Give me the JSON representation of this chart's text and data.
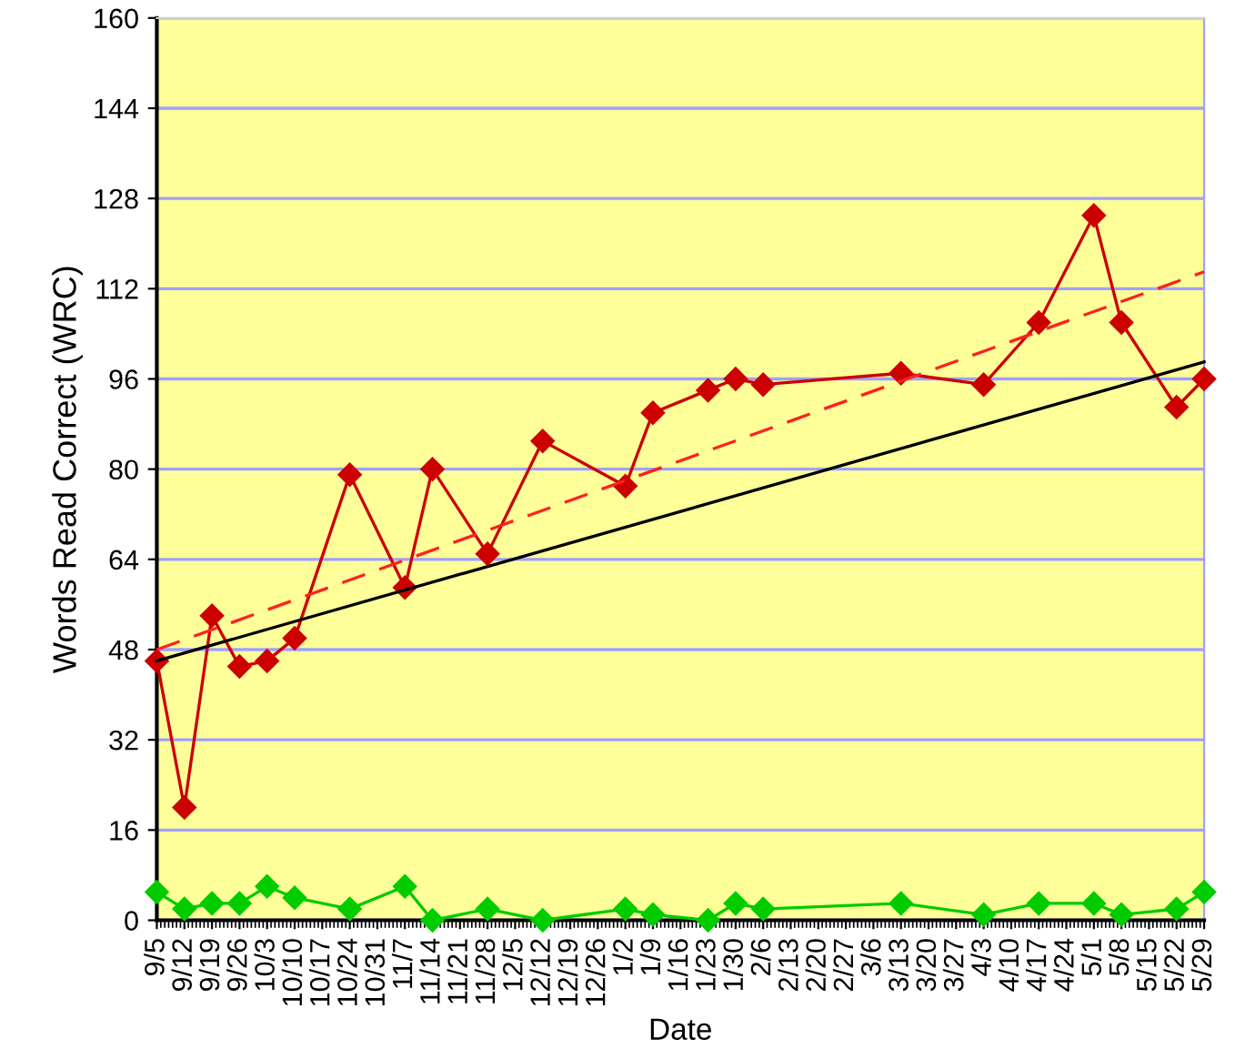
{
  "chart_data": {
    "type": "line",
    "xlabel": "Date",
    "ylabel": "Words Read Correct (WRC)",
    "ylim": [
      0,
      160
    ],
    "yticks": [
      0,
      16,
      32,
      48,
      64,
      80,
      96,
      112,
      128,
      144,
      160
    ],
    "categories": [
      "9/5",
      "9/12",
      "9/19",
      "9/26",
      "10/3",
      "10/10",
      "10/17",
      "10/24",
      "10/31",
      "11/7",
      "11/14",
      "11/21",
      "11/28",
      "12/5",
      "12/12",
      "12/19",
      "12/26",
      "1/2",
      "1/9",
      "1/16",
      "1/23",
      "1/30",
      "2/6",
      "2/13",
      "2/20",
      "2/27",
      "3/6",
      "3/13",
      "3/20",
      "3/27",
      "4/3",
      "4/10",
      "4/17",
      "4/24",
      "5/1",
      "5/8",
      "5/15",
      "5/22",
      "5/29"
    ],
    "grid": "y",
    "legend": false,
    "series": [
      {
        "color": "#cc0000",
        "marker": "diamond",
        "line_style": "solid",
        "values": [
          46,
          20,
          54,
          45,
          46,
          50,
          null,
          79,
          null,
          59,
          80,
          null,
          65,
          null,
          85,
          null,
          null,
          77,
          90,
          null,
          94,
          96,
          95,
          null,
          null,
          null,
          null,
          97,
          null,
          null,
          95,
          null,
          106,
          null,
          125,
          106,
          null,
          91,
          96
        ]
      },
      {
        "color": "#00cc00",
        "marker": "diamond",
        "line_style": "solid",
        "values": [
          5,
          2,
          3,
          3,
          6,
          4,
          null,
          2,
          null,
          6,
          0,
          null,
          2,
          null,
          0,
          null,
          null,
          2,
          1,
          null,
          0,
          3,
          2,
          null,
          null,
          null,
          null,
          3,
          null,
          null,
          1,
          null,
          3,
          null,
          3,
          1,
          null,
          2,
          5
        ]
      },
      {
        "color": "#000000",
        "marker": "none",
        "line_style": "solid",
        "values": [
          46,
          null,
          null,
          null,
          null,
          null,
          null,
          null,
          null,
          null,
          null,
          null,
          null,
          null,
          null,
          null,
          null,
          null,
          null,
          null,
          null,
          null,
          null,
          null,
          null,
          null,
          null,
          null,
          null,
          null,
          null,
          null,
          null,
          null,
          null,
          null,
          null,
          null,
          99
        ]
      },
      {
        "color": "#ff2020",
        "marker": "none",
        "line_style": "dashed",
        "values": [
          48,
          null,
          null,
          null,
          null,
          null,
          null,
          null,
          null,
          null,
          null,
          null,
          null,
          null,
          null,
          null,
          null,
          null,
          null,
          null,
          null,
          null,
          null,
          null,
          null,
          null,
          null,
          null,
          null,
          null,
          null,
          null,
          null,
          null,
          null,
          null,
          null,
          null,
          115
        ]
      }
    ]
  }
}
